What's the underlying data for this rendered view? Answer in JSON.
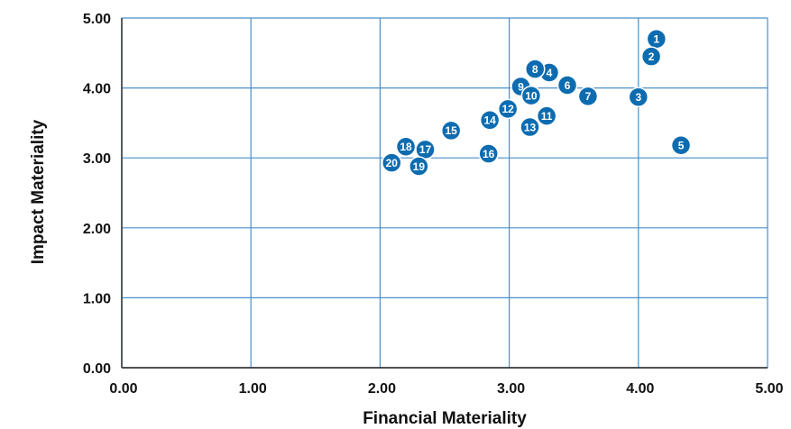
{
  "chart_data": {
    "type": "scatter",
    "title": "",
    "xlabel": "Financial Materiality",
    "ylabel": "Impact Materiality",
    "xlim": [
      0,
      5
    ],
    "ylim": [
      0,
      5
    ],
    "xticks": [
      "0.00",
      "1.00",
      "2.00",
      "3.00",
      "4.00",
      "5.00"
    ],
    "yticks": [
      "0.00",
      "1.00",
      "2.00",
      "3.00",
      "4.00",
      "5.00"
    ],
    "grid": true,
    "marker_color": "#0d6cb0",
    "grid_color": "#4a8fc8",
    "points": [
      {
        "label": "1",
        "x": 4.14,
        "y": 4.7
      },
      {
        "label": "2",
        "x": 4.1,
        "y": 4.45
      },
      {
        "label": "3",
        "x": 4.0,
        "y": 3.87
      },
      {
        "label": "4",
        "x": 3.31,
        "y": 4.22
      },
      {
        "label": "5",
        "x": 4.33,
        "y": 3.18
      },
      {
        "label": "6",
        "x": 3.45,
        "y": 4.04
      },
      {
        "label": "7",
        "x": 3.61,
        "y": 3.88
      },
      {
        "label": "8",
        "x": 3.2,
        "y": 4.27
      },
      {
        "label": "9",
        "x": 3.09,
        "y": 4.02
      },
      {
        "label": "10",
        "x": 3.17,
        "y": 3.89
      },
      {
        "label": "11",
        "x": 3.29,
        "y": 3.6
      },
      {
        "label": "12",
        "x": 2.99,
        "y": 3.7
      },
      {
        "label": "13",
        "x": 3.16,
        "y": 3.44
      },
      {
        "label": "14",
        "x": 2.85,
        "y": 3.54
      },
      {
        "label": "15",
        "x": 2.55,
        "y": 3.39
      },
      {
        "label": "16",
        "x": 2.84,
        "y": 3.06
      },
      {
        "label": "17",
        "x": 2.35,
        "y": 3.12
      },
      {
        "label": "18",
        "x": 2.2,
        "y": 3.16
      },
      {
        "label": "19",
        "x": 2.3,
        "y": 2.88
      },
      {
        "label": "20",
        "x": 2.09,
        "y": 2.93
      }
    ]
  }
}
